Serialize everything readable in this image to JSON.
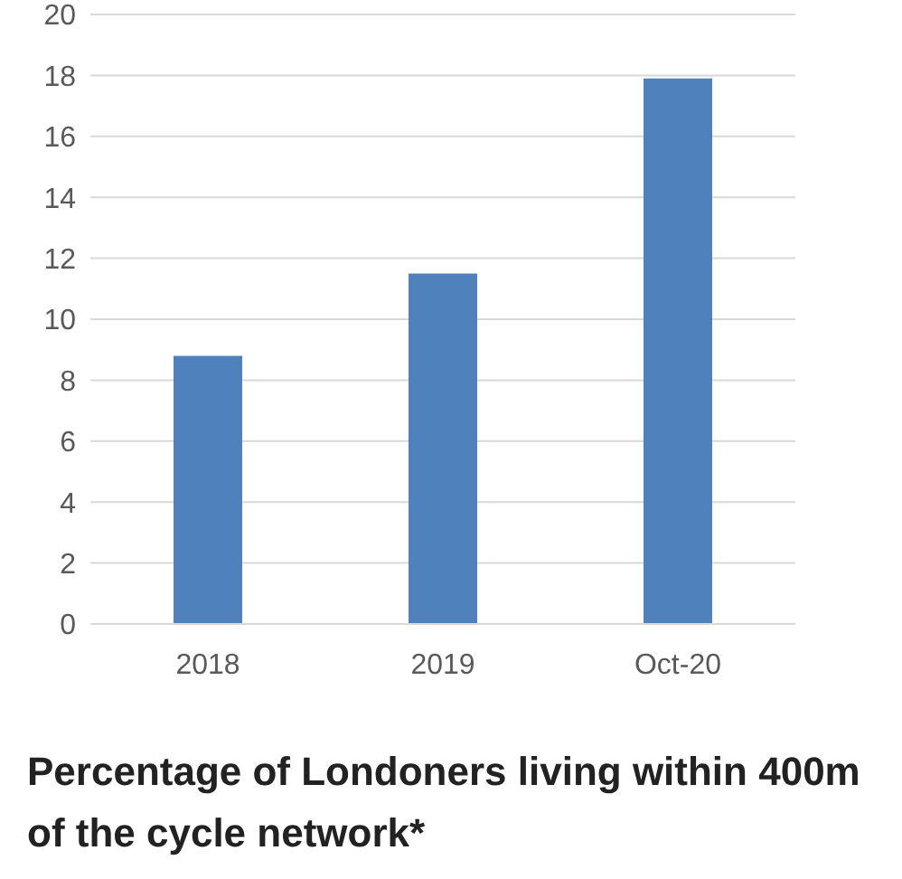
{
  "chart_data": {
    "type": "bar",
    "title": "Percentage of Londoners living within 400m of the cycle network*",
    "categories": [
      "2018",
      "2019",
      "Oct-20"
    ],
    "values": [
      8.8,
      11.5,
      17.9
    ],
    "color": "#4f81bd",
    "ylim": [
      0,
      20
    ],
    "yticks": [
      0,
      2,
      4,
      6,
      8,
      10,
      12,
      14,
      16,
      18,
      20
    ],
    "grid": "y"
  }
}
